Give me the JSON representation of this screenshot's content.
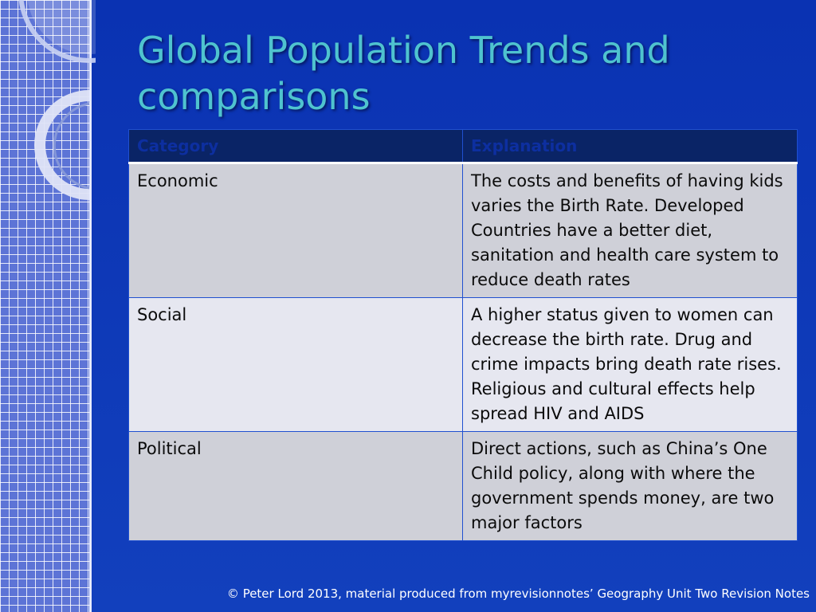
{
  "slide": {
    "title": "Global Population Trends and comparisons",
    "table": {
      "headers": [
        "Category",
        "Explanation"
      ],
      "rows": [
        [
          "Economic",
          "The costs and benefits of having kids varies the Birth Rate. Developed Countries have a better diet, sanitation and health care system to reduce death rates"
        ],
        [
          "Social",
          "A higher status given to women can decrease the birth rate. Drug and crime impacts bring death rate rises. Religious and cultural effects help spread HIV and AIDS"
        ],
        [
          "Political",
          "Direct actions, such as China’s One Child policy, along with where the government spends money, are two major factors"
        ]
      ]
    },
    "footer": "© Peter Lord 2013, material produced from myrevisionnotes’ Geography Unit Two Revision Notes"
  },
  "colors": {
    "background": "#0f37b4",
    "title": "#4fc3cf",
    "header_fill": "#0a2466",
    "row_dark": "#cfd0d8",
    "row_light": "#e6e7f0"
  }
}
